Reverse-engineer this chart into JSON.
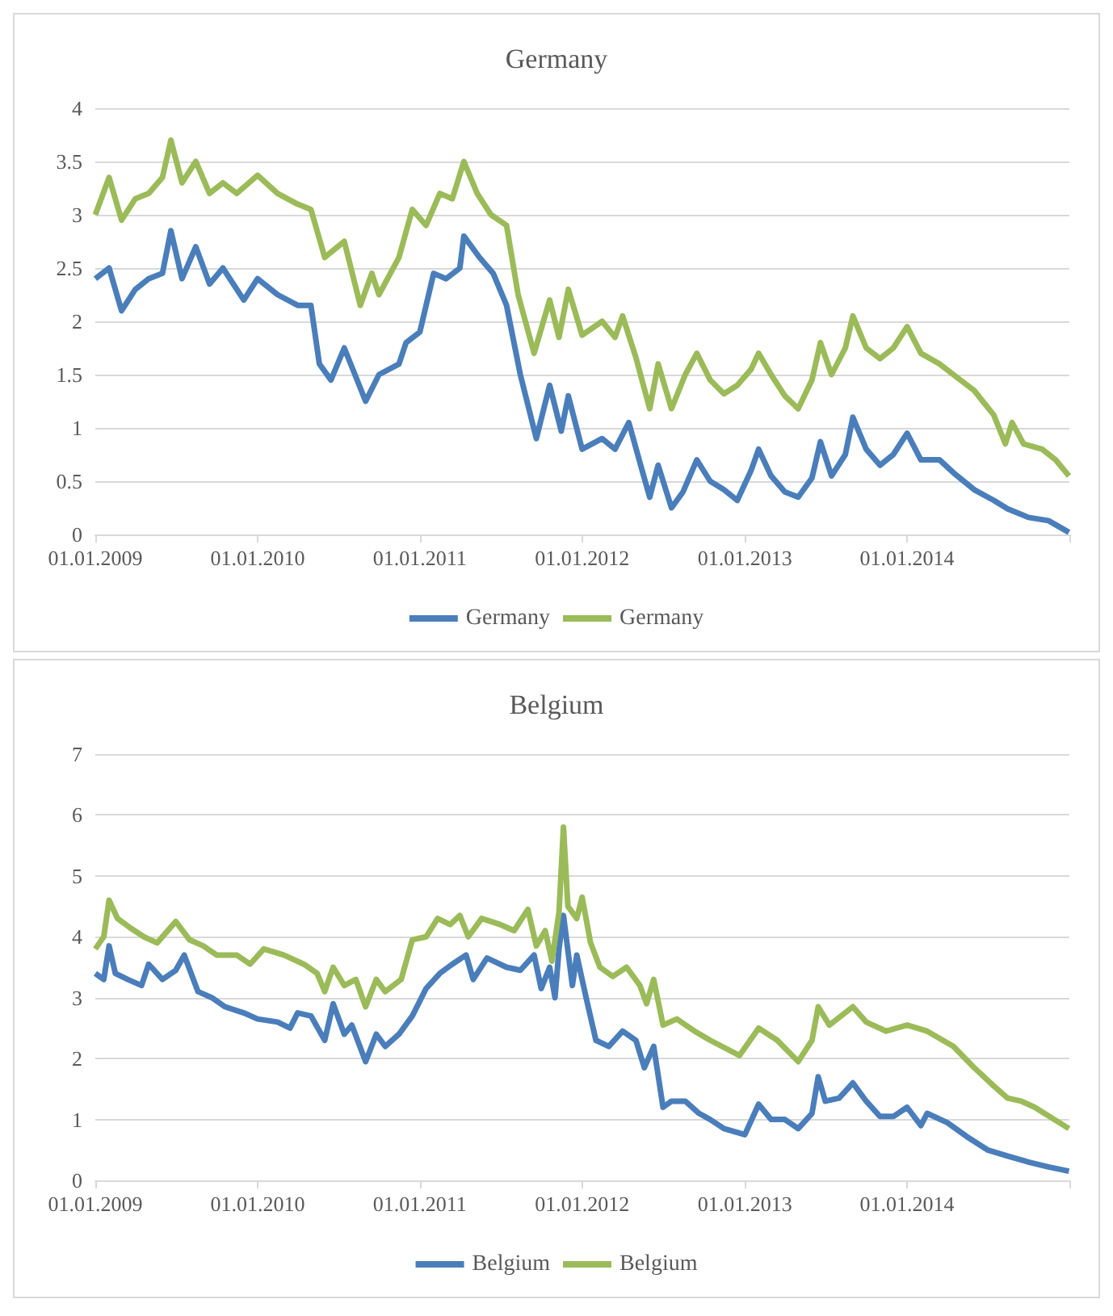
{
  "chart_data": [
    {
      "type": "line",
      "title": "Germany",
      "xlim": [
        "2009-01-01",
        "2015-01-01"
      ],
      "xticks": [
        {
          "value": "2009-01-01",
          "label": "01.01.2009"
        },
        {
          "value": "2010-01-01",
          "label": "01.01.2010"
        },
        {
          "value": "2011-01-01",
          "label": "01.01.2011"
        },
        {
          "value": "2012-01-01",
          "label": "01.01.2012"
        },
        {
          "value": "2013-01-01",
          "label": "01.01.2013"
        },
        {
          "value": "2014-01-01",
          "label": "01.01.2014"
        },
        {
          "value": "2015-01-01",
          "label": null
        }
      ],
      "ylim": [
        0,
        4
      ],
      "yticks": [
        0,
        0.5,
        1,
        1.5,
        2,
        2.5,
        3,
        3.5,
        4
      ],
      "grid": "y",
      "legend": "bottom",
      "marker": "none",
      "line_style": "solid",
      "series": [
        {
          "name": "Germany",
          "color": "#4a7ebb",
          "x": [
            "2009-01-01",
            "2009-02-01",
            "2009-03-01",
            "2009-04-01",
            "2009-05-01",
            "2009-06-01",
            "2009-06-20",
            "2009-07-15",
            "2009-08-15",
            "2009-09-15",
            "2009-10-15",
            "2009-12-01",
            "2010-01-01",
            "2010-02-15",
            "2010-04-01",
            "2010-05-01",
            "2010-05-20",
            "2010-06-15",
            "2010-07-15",
            "2010-09-01",
            "2010-10-01",
            "2010-11-15",
            "2010-12-01",
            "2011-01-01",
            "2011-02-01",
            "2011-03-01",
            "2011-04-01",
            "2011-04-10",
            "2011-05-15",
            "2011-06-15",
            "2011-07-15",
            "2011-08-15",
            "2011-09-20",
            "2011-10-20",
            "2011-11-15",
            "2011-12-01",
            "2012-01-01",
            "2012-02-15",
            "2012-03-15",
            "2012-04-15",
            "2012-05-15",
            "2012-06-01",
            "2012-06-20",
            "2012-07-20",
            "2012-08-15",
            "2012-09-15",
            "2012-10-15",
            "2012-11-15",
            "2012-12-15",
            "2013-01-15",
            "2013-02-01",
            "2013-03-01",
            "2013-04-01",
            "2013-05-01",
            "2013-06-01",
            "2013-06-20",
            "2013-07-15",
            "2013-08-15",
            "2013-09-01",
            "2013-10-01",
            "2013-11-01",
            "2013-12-01",
            "2014-01-01",
            "2014-02-01",
            "2014-03-15",
            "2014-04-15",
            "2014-06-01",
            "2014-07-15",
            "2014-08-15",
            "2014-10-01",
            "2014-11-15",
            "2014-12-31"
          ],
          "values": [
            2.4,
            2.5,
            2.1,
            2.3,
            2.4,
            2.45,
            2.85,
            2.4,
            2.7,
            2.35,
            2.5,
            2.2,
            2.4,
            2.25,
            2.15,
            2.15,
            1.6,
            1.45,
            1.75,
            1.25,
            1.5,
            1.6,
            1.8,
            1.9,
            2.45,
            2.4,
            2.5,
            2.8,
            2.6,
            2.45,
            2.15,
            1.5,
            0.9,
            1.4,
            0.97,
            1.3,
            0.8,
            0.9,
            0.8,
            1.05,
            0.6,
            0.35,
            0.65,
            0.25,
            0.4,
            0.7,
            0.5,
            0.42,
            0.32,
            0.6,
            0.8,
            0.55,
            0.4,
            0.35,
            0.53,
            0.87,
            0.55,
            0.75,
            1.1,
            0.8,
            0.65,
            0.75,
            0.95,
            0.7,
            0.7,
            0.58,
            0.42,
            0.32,
            0.24,
            0.16,
            0.13,
            0.02
          ]
        },
        {
          "name": "Germany",
          "color": "#9bbb59",
          "x": [
            "2009-01-01",
            "2009-02-01",
            "2009-03-01",
            "2009-04-01",
            "2009-05-01",
            "2009-06-01",
            "2009-06-20",
            "2009-07-15",
            "2009-08-15",
            "2009-09-15",
            "2009-10-15",
            "2009-11-15",
            "2010-01-01",
            "2010-02-15",
            "2010-04-01",
            "2010-05-01",
            "2010-06-01",
            "2010-07-15",
            "2010-08-20",
            "2010-09-15",
            "2010-10-01",
            "2010-11-15",
            "2010-12-15",
            "2011-01-15",
            "2011-02-15",
            "2011-03-15",
            "2011-04-10",
            "2011-05-10",
            "2011-06-10",
            "2011-07-15",
            "2011-08-10",
            "2011-09-15",
            "2011-10-20",
            "2011-11-10",
            "2011-12-01",
            "2012-01-01",
            "2012-02-15",
            "2012-03-15",
            "2012-04-01",
            "2012-05-01",
            "2012-06-01",
            "2012-06-20",
            "2012-07-20",
            "2012-08-20",
            "2012-09-15",
            "2012-10-15",
            "2012-11-15",
            "2012-12-15",
            "2013-01-15",
            "2013-02-01",
            "2013-03-01",
            "2013-04-01",
            "2013-05-01",
            "2013-06-01",
            "2013-06-20",
            "2013-07-15",
            "2013-08-15",
            "2013-09-01",
            "2013-10-01",
            "2013-11-01",
            "2013-12-01",
            "2014-01-01",
            "2014-02-01",
            "2014-03-15",
            "2014-04-15",
            "2014-06-01",
            "2014-07-15",
            "2014-08-10",
            "2014-08-25",
            "2014-09-20",
            "2014-11-01",
            "2014-12-01",
            "2014-12-31"
          ],
          "values": [
            3.0,
            3.35,
            2.95,
            3.15,
            3.2,
            3.35,
            3.7,
            3.3,
            3.5,
            3.2,
            3.3,
            3.2,
            3.37,
            3.2,
            3.1,
            3.05,
            2.6,
            2.75,
            2.15,
            2.45,
            2.25,
            2.6,
            3.05,
            2.9,
            3.2,
            3.15,
            3.5,
            3.2,
            3.0,
            2.9,
            2.25,
            1.7,
            2.2,
            1.85,
            2.3,
            1.87,
            2.0,
            1.85,
            2.05,
            1.66,
            1.18,
            1.6,
            1.18,
            1.5,
            1.7,
            1.45,
            1.32,
            1.4,
            1.55,
            1.7,
            1.5,
            1.3,
            1.18,
            1.45,
            1.8,
            1.5,
            1.75,
            2.05,
            1.75,
            1.65,
            1.75,
            1.95,
            1.7,
            1.6,
            1.5,
            1.35,
            1.12,
            0.85,
            1.05,
            0.85,
            0.8,
            0.7,
            0.55
          ]
        }
      ]
    },
    {
      "type": "line",
      "title": "Belgium",
      "xlim": [
        "2009-01-01",
        "2015-01-01"
      ],
      "xticks": [
        {
          "value": "2009-01-01",
          "label": "01.01.2009"
        },
        {
          "value": "2010-01-01",
          "label": "01.01.2010"
        },
        {
          "value": "2011-01-01",
          "label": "01.01.2011"
        },
        {
          "value": "2012-01-01",
          "label": "01.01.2012"
        },
        {
          "value": "2013-01-01",
          "label": "01.01.2013"
        },
        {
          "value": "2014-01-01",
          "label": "01.01.2014"
        },
        {
          "value": "2015-01-01",
          "label": null
        }
      ],
      "ylim": [
        0,
        7
      ],
      "yticks": [
        0,
        1,
        2,
        3,
        4,
        5,
        6,
        7
      ],
      "grid": "y",
      "legend": "bottom",
      "marker": "none",
      "line_style": "solid",
      "series": [
        {
          "name": "Belgium",
          "color": "#4a7ebb",
          "x": [
            "2009-01-01",
            "2009-01-20",
            "2009-02-01",
            "2009-02-15",
            "2009-03-15",
            "2009-04-15",
            "2009-05-01",
            "2009-06-01",
            "2009-07-01",
            "2009-07-20",
            "2009-08-20",
            "2009-09-20",
            "2009-10-20",
            "2009-12-01",
            "2010-01-01",
            "2010-02-15",
            "2010-03-15",
            "2010-04-01",
            "2010-05-01",
            "2010-06-01",
            "2010-06-20",
            "2010-07-15",
            "2010-08-01",
            "2010-09-01",
            "2010-09-25",
            "2010-10-15",
            "2010-11-15",
            "2010-12-15",
            "2011-01-15",
            "2011-02-15",
            "2011-03-15",
            "2011-04-15",
            "2011-05-01",
            "2011-06-01",
            "2011-07-15",
            "2011-08-15",
            "2011-09-15",
            "2011-10-01",
            "2011-10-20",
            "2011-11-01",
            "2011-11-10",
            "2011-11-20",
            "2011-12-10",
            "2011-12-20",
            "2012-01-10",
            "2012-02-01",
            "2012-03-01",
            "2012-04-01",
            "2012-05-01",
            "2012-05-20",
            "2012-06-10",
            "2012-07-01",
            "2012-07-20",
            "2012-08-20",
            "2012-09-20",
            "2012-10-15",
            "2012-11-15",
            "2013-01-01",
            "2013-02-01",
            "2013-03-01",
            "2013-04-01",
            "2013-05-01",
            "2013-06-01",
            "2013-06-15",
            "2013-07-01",
            "2013-08-01",
            "2013-09-01",
            "2013-10-01",
            "2013-11-01",
            "2013-12-01",
            "2014-01-01",
            "2014-02-01",
            "2014-02-15",
            "2014-04-01",
            "2014-05-15",
            "2014-07-01",
            "2014-08-15",
            "2014-10-01",
            "2014-11-15",
            "2014-12-31"
          ],
          "values": [
            3.4,
            3.3,
            3.85,
            3.4,
            3.3,
            3.2,
            3.55,
            3.3,
            3.45,
            3.7,
            3.1,
            3.0,
            2.85,
            2.75,
            2.65,
            2.6,
            2.5,
            2.75,
            2.7,
            2.3,
            2.9,
            2.4,
            2.55,
            1.95,
            2.4,
            2.2,
            2.4,
            2.7,
            3.15,
            3.4,
            3.55,
            3.7,
            3.3,
            3.65,
            3.5,
            3.45,
            3.7,
            3.15,
            3.5,
            3.0,
            3.8,
            4.35,
            3.2,
            3.7,
            3.0,
            2.3,
            2.2,
            2.45,
            2.3,
            1.85,
            2.2,
            1.2,
            1.3,
            1.3,
            1.1,
            1.0,
            0.85,
            0.75,
            1.25,
            1.0,
            1.0,
            0.85,
            1.1,
            1.7,
            1.3,
            1.35,
            1.6,
            1.3,
            1.05,
            1.05,
            1.2,
            0.9,
            1.1,
            0.95,
            0.72,
            0.5,
            0.4,
            0.3,
            0.22,
            0.15
          ]
        },
        {
          "name": "Belgium",
          "color": "#9bbb59",
          "x": [
            "2009-01-01",
            "2009-01-20",
            "2009-02-01",
            "2009-02-20",
            "2009-03-20",
            "2009-04-20",
            "2009-05-20",
            "2009-07-01",
            "2009-08-01",
            "2009-09-01",
            "2009-10-01",
            "2009-11-15",
            "2009-12-15",
            "2010-01-15",
            "2010-03-01",
            "2010-04-15",
            "2010-05-15",
            "2010-06-01",
            "2010-06-20",
            "2010-07-15",
            "2010-08-10",
            "2010-09-01",
            "2010-09-25",
            "2010-10-15",
            "2010-11-20",
            "2010-12-15",
            "2011-01-15",
            "2011-02-10",
            "2011-03-10",
            "2011-04-01",
            "2011-04-20",
            "2011-05-20",
            "2011-07-01",
            "2011-08-01",
            "2011-09-01",
            "2011-09-20",
            "2011-10-10",
            "2011-10-25",
            "2011-11-10",
            "2011-11-20",
            "2011-11-30",
            "2011-12-20",
            "2012-01-01",
            "2012-01-20",
            "2012-02-10",
            "2012-03-10",
            "2012-04-10",
            "2012-05-10",
            "2012-05-25",
            "2012-06-10",
            "2012-07-01",
            "2012-08-01",
            "2012-09-10",
            "2012-10-15",
            "2012-12-20",
            "2013-02-01",
            "2013-03-15",
            "2013-05-01",
            "2013-06-01",
            "2013-06-15",
            "2013-07-10",
            "2013-09-01",
            "2013-10-01",
            "2013-11-15",
            "2014-01-01",
            "2014-02-15",
            "2014-04-15",
            "2014-06-01",
            "2014-07-15",
            "2014-08-15",
            "2014-09-15",
            "2014-10-15",
            "2014-12-31"
          ],
          "values": [
            3.8,
            4.0,
            4.6,
            4.3,
            4.15,
            4.0,
            3.9,
            4.25,
            3.95,
            3.85,
            3.7,
            3.7,
            3.55,
            3.8,
            3.7,
            3.55,
            3.4,
            3.1,
            3.5,
            3.2,
            3.3,
            2.85,
            3.3,
            3.1,
            3.3,
            3.95,
            4.0,
            4.3,
            4.2,
            4.35,
            4.0,
            4.3,
            4.2,
            4.1,
            4.45,
            3.85,
            4.1,
            3.6,
            4.4,
            5.8,
            4.5,
            4.3,
            4.65,
            3.9,
            3.5,
            3.35,
            3.5,
            3.2,
            2.9,
            3.3,
            2.55,
            2.65,
            2.45,
            2.3,
            2.05,
            2.5,
            2.3,
            1.95,
            2.3,
            2.85,
            2.55,
            2.85,
            2.6,
            2.45,
            2.55,
            2.45,
            2.2,
            1.85,
            1.55,
            1.35,
            1.3,
            1.2,
            0.85
          ]
        }
      ]
    }
  ]
}
